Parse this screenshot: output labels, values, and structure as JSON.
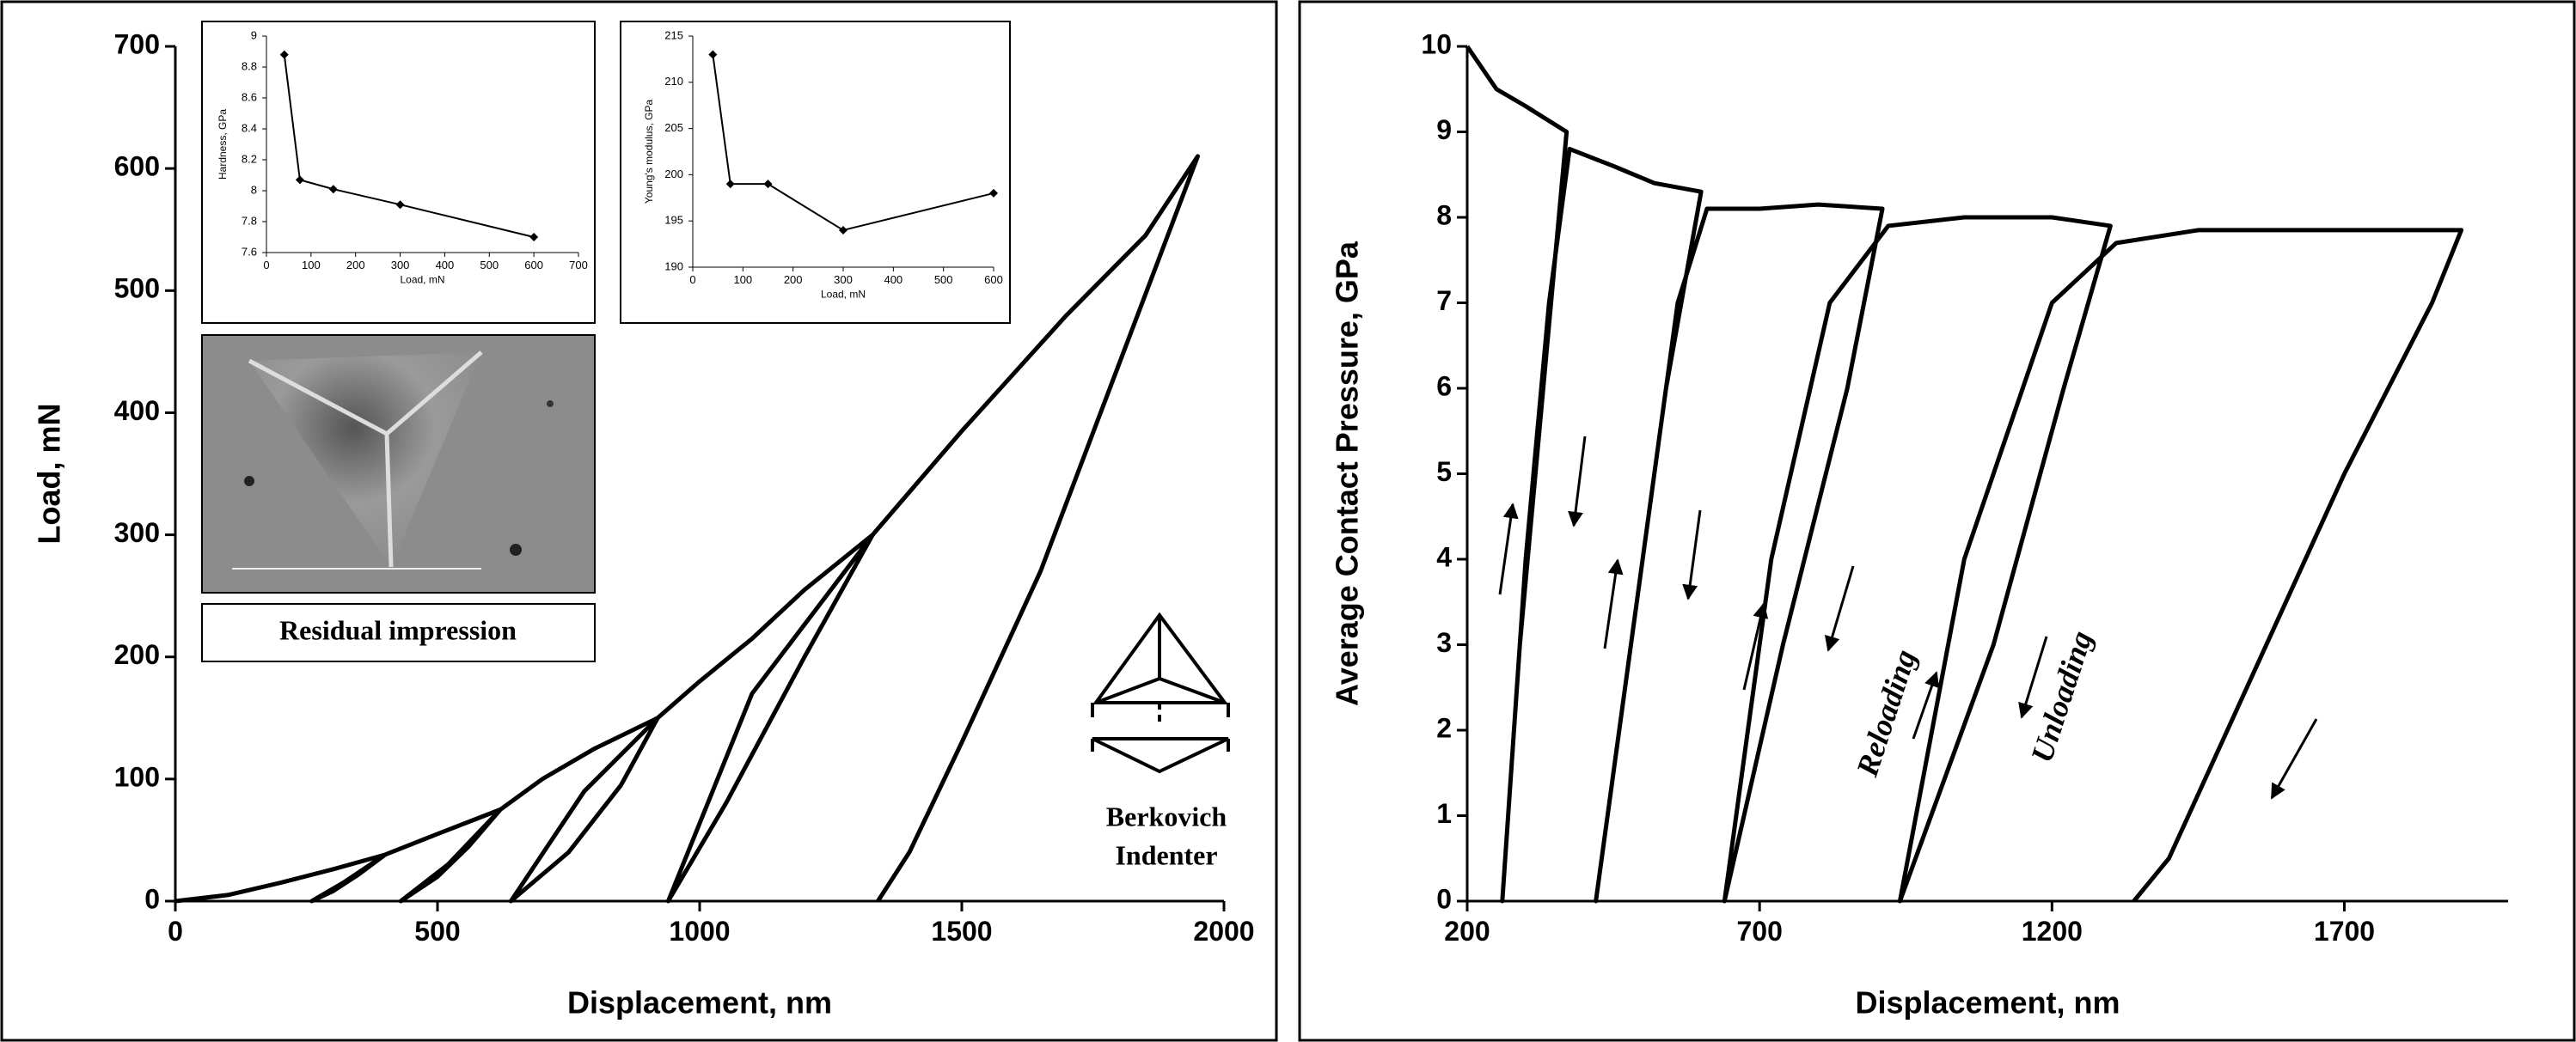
{
  "chart_data": [
    {
      "type": "line",
      "xlabel": "Displacement, nm",
      "ylabel": "Load, mN",
      "xlim": [
        0,
        2000
      ],
      "xticks": [
        0,
        500,
        1000,
        1500,
        2000
      ],
      "ylim": [
        0,
        700
      ],
      "yticks": [
        0,
        100,
        200,
        300,
        400,
        500,
        600,
        700
      ],
      "series": [
        {
          "color": "#000000",
          "x": [
            0,
            100,
            200,
            300,
            400,
            350,
            300,
            260,
            320,
            400,
            500,
            620,
            560,
            500,
            430,
            520,
            620,
            700,
            800,
            920,
            850,
            750,
            640,
            780,
            920,
            1000,
            1100,
            1200,
            1330,
            1200,
            1050,
            940,
            1100,
            1330,
            1500,
            1700,
            1850,
            1950,
            1800,
            1650,
            1500,
            1400,
            1340
          ],
          "values": [
            0,
            5,
            15,
            26,
            38,
            22,
            8,
            0,
            15,
            38,
            55,
            75,
            45,
            20,
            0,
            30,
            75,
            100,
            125,
            150,
            95,
            40,
            0,
            90,
            150,
            180,
            215,
            255,
            300,
            200,
            80,
            0,
            170,
            300,
            385,
            480,
            545,
            610,
            440,
            270,
            130,
            40,
            0
          ]
        }
      ],
      "annotations": [
        "Residual impression",
        "Berkovich",
        "Indenter"
      ]
    },
    {
      "type": "line",
      "xlabel": "Load, mN",
      "ylabel": "Hardness, GPa",
      "xlim": [
        0,
        700
      ],
      "xticks": [
        0,
        100,
        200,
        300,
        400,
        500,
        600,
        700
      ],
      "ylim": [
        7.6,
        9
      ],
      "yticks": [
        7.6,
        7.8,
        8,
        8.2,
        8.4,
        8.6,
        8.8,
        9
      ],
      "series": [
        {
          "color": "#000000",
          "marker": "diamond",
          "x": [
            40,
            75,
            150,
            300,
            600
          ],
          "values": [
            8.88,
            8.07,
            8.01,
            7.91,
            7.7
          ]
        }
      ]
    },
    {
      "type": "line",
      "xlabel": "Load, mN",
      "ylabel": "Young's modulus, GPa",
      "xlim": [
        0,
        600
      ],
      "xticks": [
        0,
        100,
        200,
        300,
        400,
        500,
        600
      ],
      "ylim": [
        190,
        215
      ],
      "yticks": [
        190,
        195,
        200,
        205,
        210,
        215
      ],
      "series": [
        {
          "color": "#000000",
          "marker": "diamond",
          "x": [
            40,
            75,
            150,
            300,
            600
          ],
          "values": [
            213,
            199,
            199,
            194,
            198
          ]
        }
      ]
    },
    {
      "type": "line",
      "xlabel": "Displacement, nm",
      "ylabel": "Average Contact Pressure, GPa",
      "xlim": [
        200,
        1980
      ],
      "xticks": [
        200,
        700,
        1200,
        1700
      ],
      "ylim": [
        0,
        10
      ],
      "yticks": [
        0,
        1,
        2,
        3,
        4,
        5,
        6,
        7,
        8,
        9,
        10
      ],
      "series": [
        {
          "color": "#000000",
          "x": [
            200,
            250,
            300,
            370,
            330,
            290,
            260,
            300,
            340,
            375,
            450,
            520,
            600,
            540,
            480,
            420,
            500,
            560,
            610,
            700,
            800,
            910,
            850,
            740,
            640,
            720,
            820,
            920,
            1050,
            1200,
            1300,
            1220,
            1100,
            940,
            1050,
            1200,
            1310,
            1450,
            1600,
            1900,
            1850,
            1700,
            1500,
            1400,
            1340
          ],
          "values": [
            10,
            9.5,
            9.3,
            9.0,
            6,
            3,
            0,
            4,
            7,
            8.8,
            8.6,
            8.4,
            8.3,
            6,
            3,
            0,
            4,
            7,
            8.1,
            8.1,
            8.15,
            8.1,
            6,
            3,
            0,
            4,
            7,
            7.9,
            8.0,
            8.0,
            7.9,
            6,
            3,
            0,
            4,
            7,
            7.7,
            7.85,
            7.85,
            7.85,
            7,
            5,
            2,
            0.5,
            0
          ]
        }
      ],
      "annotations": [
        "Reloading",
        "Unloading"
      ]
    }
  ]
}
